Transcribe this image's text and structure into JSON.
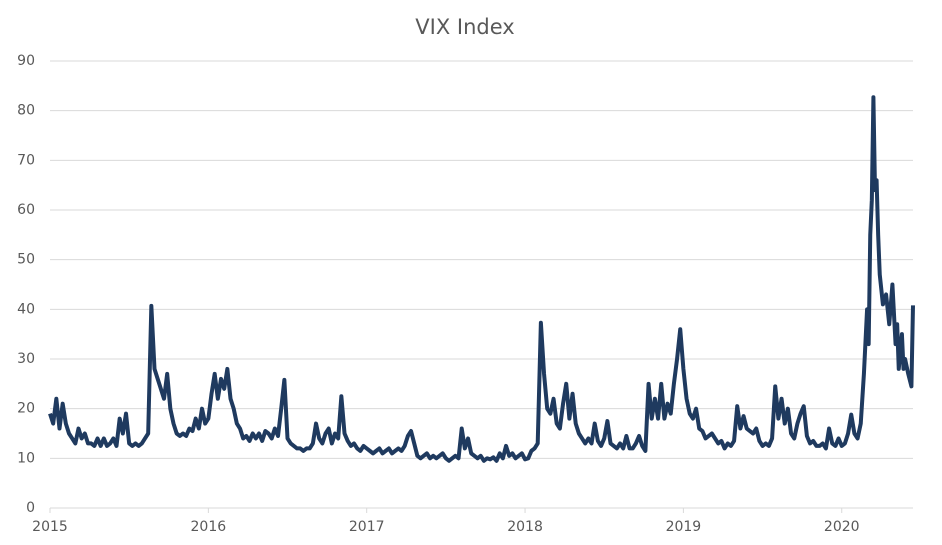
{
  "chart_data": {
    "type": "line",
    "title": "VIX Index",
    "x": [
      2015,
      2015.02,
      2015.04,
      2015.06,
      2015.08,
      2015.1,
      2015.12,
      2015.14,
      2015.16,
      2015.18,
      2015.2,
      2015.22,
      2015.24,
      2015.26,
      2015.28,
      2015.3,
      2015.32,
      2015.34,
      2015.36,
      2015.38,
      2015.4,
      2015.42,
      2015.44,
      2015.46,
      2015.48,
      2015.5,
      2015.52,
      2015.54,
      2015.56,
      2015.58,
      2015.6,
      2015.62,
      2015.64,
      2015.66,
      2015.68,
      2015.7,
      2015.72,
      2015.74,
      2015.76,
      2015.78,
      2015.8,
      2015.82,
      2015.84,
      2015.86,
      2015.88,
      2015.9,
      2015.92,
      2015.94,
      2015.96,
      2015.98,
      2016,
      2016.02,
      2016.04,
      2016.06,
      2016.08,
      2016.1,
      2016.12,
      2016.14,
      2016.16,
      2016.18,
      2016.2,
      2016.22,
      2016.24,
      2016.26,
      2016.28,
      2016.3,
      2016.32,
      2016.34,
      2016.36,
      2016.38,
      2016.4,
      2016.42,
      2016.44,
      2016.46,
      2016.48,
      2016.5,
      2016.52,
      2016.54,
      2016.56,
      2016.58,
      2016.6,
      2016.62,
      2016.64,
      2016.66,
      2016.68,
      2016.7,
      2016.72,
      2016.74,
      2016.76,
      2016.78,
      2016.8,
      2016.82,
      2016.84,
      2016.86,
      2016.88,
      2016.9,
      2016.92,
      2016.94,
      2016.96,
      2016.98,
      2017,
      2017.02,
      2017.04,
      2017.06,
      2017.08,
      2017.1,
      2017.12,
      2017.14,
      2017.16,
      2017.18,
      2017.2,
      2017.22,
      2017.24,
      2017.26,
      2017.28,
      2017.3,
      2017.32,
      2017.34,
      2017.36,
      2017.38,
      2017.4,
      2017.42,
      2017.44,
      2017.46,
      2017.48,
      2017.5,
      2017.52,
      2017.54,
      2017.56,
      2017.58,
      2017.6,
      2017.62,
      2017.64,
      2017.66,
      2017.68,
      2017.7,
      2017.72,
      2017.74,
      2017.76,
      2017.78,
      2017.8,
      2017.82,
      2017.84,
      2017.86,
      2017.88,
      2017.9,
      2017.92,
      2017.94,
      2017.96,
      2017.98,
      2018,
      2018.02,
      2018.04,
      2018.06,
      2018.08,
      2018.1,
      2018.12,
      2018.14,
      2018.16,
      2018.18,
      2018.2,
      2018.22,
      2018.24,
      2018.26,
      2018.28,
      2018.3,
      2018.32,
      2018.34,
      2018.36,
      2018.38,
      2018.4,
      2018.42,
      2018.44,
      2018.46,
      2018.48,
      2018.5,
      2018.52,
      2018.54,
      2018.56,
      2018.58,
      2018.6,
      2018.62,
      2018.64,
      2018.66,
      2018.68,
      2018.7,
      2018.72,
      2018.74,
      2018.76,
      2018.78,
      2018.8,
      2018.82,
      2018.84,
      2018.86,
      2018.88,
      2018.9,
      2018.92,
      2018.94,
      2018.96,
      2018.98,
      2019,
      2019.02,
      2019.04,
      2019.06,
      2019.08,
      2019.1,
      2019.12,
      2019.14,
      2019.16,
      2019.18,
      2019.2,
      2019.22,
      2019.24,
      2019.26,
      2019.28,
      2019.3,
      2019.32,
      2019.34,
      2019.36,
      2019.38,
      2019.4,
      2019.42,
      2019.44,
      2019.46,
      2019.48,
      2019.5,
      2019.52,
      2019.54,
      2019.56,
      2019.58,
      2019.6,
      2019.62,
      2019.64,
      2019.66,
      2019.68,
      2019.7,
      2019.72,
      2019.74,
      2019.76,
      2019.78,
      2019.8,
      2019.82,
      2019.84,
      2019.86,
      2019.88,
      2019.9,
      2019.92,
      2019.94,
      2019.96,
      2019.98,
      2020,
      2020.02,
      2020.04,
      2020.06,
      2020.08,
      2020.1,
      2020.12,
      2020.14,
      2020.16,
      2020.17,
      2020.18,
      2020.19,
      2020.2,
      2020.21,
      2020.22,
      2020.23,
      2020.24,
      2020.26,
      2020.28,
      2020.3,
      2020.32,
      2020.34,
      2020.35,
      2020.36,
      2020.38,
      2020.39,
      2020.4,
      2020.42,
      2020.44,
      2020.45
    ],
    "series": [
      {
        "name": "VIX",
        "color": "#1f3a5f",
        "values": [
          19,
          17,
          22,
          16,
          21,
          17,
          15,
          14,
          13,
          16,
          14,
          15,
          13,
          13,
          12.5,
          14,
          12.5,
          14,
          12.5,
          13,
          14,
          12.5,
          18,
          15,
          19,
          13,
          12.5,
          13,
          12.5,
          13,
          14,
          15,
          40.7,
          28,
          26,
          24,
          22,
          27,
          20,
          17,
          15,
          14.5,
          15,
          14.5,
          16,
          15.5,
          18,
          16,
          20,
          17,
          18,
          23,
          27,
          22,
          26,
          24,
          28,
          22,
          20,
          17,
          16,
          14,
          14.5,
          13.5,
          15,
          14,
          15,
          13.5,
          15.5,
          15,
          14,
          16,
          14.5,
          20,
          25.8,
          14,
          13,
          12.5,
          12,
          12,
          11.5,
          12,
          12,
          13,
          17,
          14,
          13,
          15,
          16,
          13,
          15,
          14,
          22.5,
          15,
          13.5,
          12.5,
          13,
          12,
          11.5,
          12.5,
          12,
          11.5,
          11,
          11.5,
          12,
          11,
          11.5,
          12,
          11,
          11.5,
          12,
          11.5,
          12.5,
          14.5,
          15.5,
          13,
          10.5,
          10,
          10.5,
          11,
          10,
          10.5,
          10,
          10.5,
          11,
          10,
          9.5,
          10,
          10.5,
          10,
          16,
          12,
          14,
          11,
          10.5,
          10,
          10.5,
          9.5,
          10,
          9.8,
          10.2,
          9.5,
          11,
          10,
          12.5,
          10.5,
          11,
          10,
          10.5,
          11,
          9.8,
          10,
          11.5,
          12,
          13,
          37.3,
          27,
          20,
          19,
          22,
          17,
          16,
          21,
          25,
          18,
          23,
          17,
          15,
          14,
          13,
          14,
          13,
          17,
          13.5,
          12.5,
          14,
          17.5,
          13,
          12.5,
          12,
          13,
          12,
          14.5,
          12,
          12,
          13,
          14.5,
          12.5,
          11.5,
          25,
          18,
          22,
          18,
          25,
          18,
          21,
          19,
          25,
          30,
          36,
          28,
          22,
          19,
          18,
          20,
          16,
          15.5,
          14,
          14.5,
          15,
          14,
          13,
          13.5,
          12,
          13,
          12.5,
          13.5,
          20.5,
          16,
          18.5,
          16,
          15.5,
          15,
          16,
          13.5,
          12.5,
          13,
          12.5,
          14,
          24.5,
          18,
          22,
          17,
          20,
          15,
          14,
          17,
          19,
          20.5,
          14.5,
          13,
          13.5,
          12.5,
          12.5,
          13,
          12,
          16,
          13,
          12.5,
          14,
          12.5,
          13,
          15,
          18.8,
          15,
          14,
          17,
          27,
          40,
          33,
          55,
          62,
          82.7,
          64,
          66,
          55,
          47,
          41,
          43,
          37,
          45,
          33,
          37,
          28,
          35,
          28,
          30,
          27,
          24.5,
          40.8
        ]
      }
    ],
    "xlim": [
      2015,
      2020.45
    ],
    "xticks": [
      2015,
      2016,
      2017,
      2018,
      2019,
      2020
    ],
    "ylim": [
      0,
      90
    ],
    "yticks": [
      0,
      10,
      20,
      30,
      40,
      50,
      60,
      70,
      80,
      90
    ],
    "grid": true
  }
}
